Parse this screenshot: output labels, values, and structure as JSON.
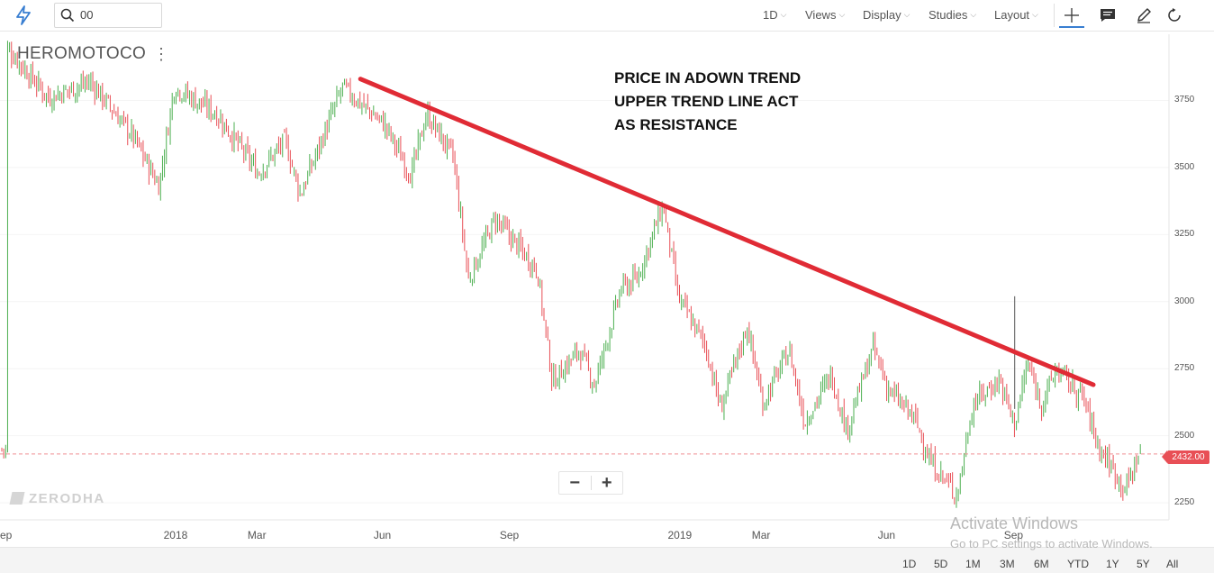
{
  "toolbar": {
    "search_value": "00",
    "interval": "1D",
    "views": "Views",
    "display": "Display",
    "studies": "Studies",
    "layout": "Layout",
    "icons": [
      "lightning-logo-icon",
      "search-icon",
      "crosshair-icon",
      "chat-icon",
      "pencil-icon",
      "refresh-icon"
    ]
  },
  "chart": {
    "symbol": "HEROMOTOCO",
    "annotation": [
      "PRICE IN ADOWN TREND",
      "UPPER TREND LINE ACT",
      "AS RESISTANCE"
    ],
    "watermark": "ZERODHA",
    "current_price": "2432.00",
    "zoom_out": "−",
    "zoom_in": "+"
  },
  "chart_data": {
    "type": "candlestick",
    "up_color": "#4caf50",
    "down_color": "#e84f56",
    "trendline_color": "#e02b35",
    "yticks": [
      "3750",
      "3500",
      "3250",
      "3000",
      "2750",
      "2500",
      "2250"
    ],
    "ytick_values": [
      3750,
      3500,
      3250,
      3000,
      2750,
      2500,
      2250
    ],
    "xticks": [
      "ep",
      "2018",
      "Mar",
      "Jun",
      "Sep",
      "2019",
      "Mar",
      "Jun",
      "Sep"
    ],
    "ylim": [
      2200,
      3990
    ],
    "trendline": {
      "from": {
        "date": "2018-05",
        "price": 3830
      },
      "to": {
        "date": "2019-11",
        "price": 2690
      }
    },
    "current_price_value": 2432,
    "price_path": [
      [
        "2017-09",
        3950
      ],
      [
        "2017-10",
        3760
      ],
      [
        "2017-11",
        3820
      ],
      [
        "2017-12",
        3620
      ],
      [
        "2017-12-20",
        3430
      ],
      [
        "2018-01",
        3800
      ],
      [
        "2018-02",
        3700
      ],
      [
        "2018-03",
        3480
      ],
      [
        "2018-03-20",
        3600
      ],
      [
        "2018-04",
        3400
      ],
      [
        "2018-05",
        3800
      ],
      [
        "2018-06",
        3660
      ],
      [
        "2018-06-20",
        3470
      ],
      [
        "2018-07",
        3700
      ],
      [
        "2018-07-20",
        3540
      ],
      [
        "2018-08",
        3080
      ],
      [
        "2018-08-20",
        3310
      ],
      [
        "2018-09",
        3240
      ],
      [
        "2018-09-20",
        3120
      ],
      [
        "2018-10",
        2700
      ],
      [
        "2018-10-20",
        2820
      ],
      [
        "2018-11",
        2690
      ],
      [
        "2018-11-20",
        3050
      ],
      [
        "2018-12",
        3080
      ],
      [
        "2018-12-20",
        3360
      ],
      [
        "2019-01",
        3010
      ],
      [
        "2019-01-20",
        2840
      ],
      [
        "2019-02",
        2600
      ],
      [
        "2019-02-20",
        2910
      ],
      [
        "2019-03",
        2620
      ],
      [
        "2019-03-20",
        2820
      ],
      [
        "2019-04",
        2550
      ],
      [
        "2019-04-20",
        2730
      ],
      [
        "2019-05",
        2520
      ],
      [
        "2019-05-20",
        2830
      ],
      [
        "2019-06",
        2670
      ],
      [
        "2019-06-20",
        2560
      ],
      [
        "2019-07",
        2400
      ],
      [
        "2019-07-20",
        2280
      ],
      [
        "2019-08",
        2620
      ],
      [
        "2019-08-20",
        2710
      ],
      [
        "2019-09",
        2540
      ],
      [
        "2019-09-10",
        2770
      ],
      [
        "2019-09-20",
        2620
      ],
      [
        "2019-10",
        2750
      ],
      [
        "2019-10-20",
        2640
      ],
      [
        "2019-11",
        2460
      ],
      [
        "2019-11-20",
        2300
      ],
      [
        "2019-12",
        2450
      ]
    ]
  },
  "ranges": [
    "1D",
    "5D",
    "1M",
    "3M",
    "6M",
    "YTD",
    "1Y",
    "5Y",
    "All"
  ],
  "os_overlay": {
    "title": "Activate Windows",
    "subtitle": "Go to PC settings to activate Windows."
  }
}
